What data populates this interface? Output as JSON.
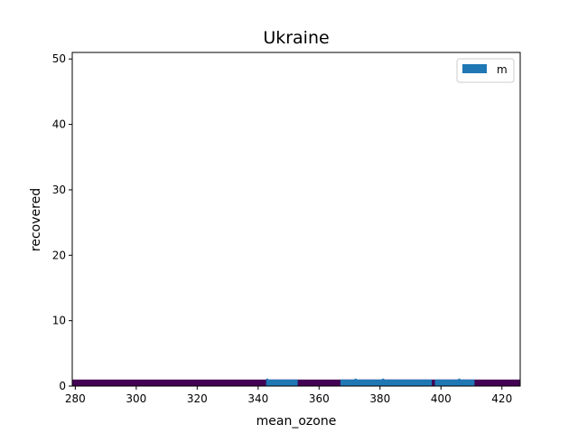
{
  "chart_data": {
    "type": "bar",
    "title": "Ukraine",
    "xlabel": "mean_ozone",
    "ylabel": "recovered",
    "xlim": [
      279,
      426
    ],
    "ylim": [
      0,
      51
    ],
    "xticks": [
      280,
      300,
      320,
      340,
      360,
      380,
      400,
      420
    ],
    "yticks": [
      0,
      10,
      20,
      30,
      40,
      50
    ],
    "grid": false,
    "legend": {
      "placement": "top-right",
      "entries": [
        "m"
      ]
    },
    "colors": {
      "bar": "#1f77b4",
      "band": "#440154"
    },
    "series": [
      {
        "name": "m",
        "bars": [
          {
            "x_start": 279,
            "x_end": 426,
            "value": 1,
            "fill": "band"
          },
          {
            "x_start": 343,
            "x_end": 353,
            "value": 1,
            "fill": "bar"
          },
          {
            "x_start": 367,
            "x_end": 381,
            "value": 1,
            "fill": "bar"
          },
          {
            "x_start": 381,
            "x_end": 397,
            "value": 1,
            "fill": "bar"
          },
          {
            "x_start": 398,
            "x_end": 411,
            "value": 1,
            "fill": "bar"
          }
        ],
        "error_ticks": [
          343,
          372,
          381,
          406
        ]
      }
    ]
  }
}
